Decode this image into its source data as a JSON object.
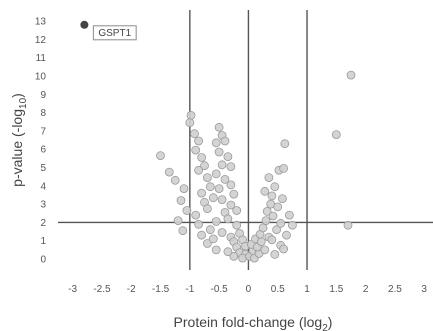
{
  "chart_data": {
    "type": "scatter",
    "xlabel": "Protein fold-change (log",
    "xlabel_sub": "2",
    "xlabel_close": ")",
    "ylabel": "p-value (-log",
    "ylabel_sub": "10",
    "ylabel_close": ")",
    "xlim": [
      -3.25,
      3.15
    ],
    "ylim": [
      -0.6,
      13.5
    ],
    "xticks": [
      -3,
      -2.5,
      -2,
      -1.5,
      -1,
      -0.5,
      0,
      0.5,
      1,
      1.5,
      2,
      2.5,
      3
    ],
    "xtick_labels": [
      "-3",
      "-2.5",
      "-2",
      "-1.5",
      "-1",
      "-0.5",
      "0",
      "0.5",
      "1",
      "1.5",
      "2",
      "2.5",
      "3"
    ],
    "yticks": [
      0,
      1,
      2,
      3,
      4,
      5,
      6,
      7,
      8,
      9,
      10,
      11,
      12,
      13
    ],
    "ytick_labels": [
      "0",
      "1",
      "2",
      "3",
      "4",
      "5",
      "6",
      "7",
      "8",
      "9",
      "10",
      "11",
      "12",
      "13"
    ],
    "threshold_lines": {
      "x": [
        -1,
        0,
        1
      ],
      "y": [
        2
      ]
    },
    "grid": false,
    "colors": {
      "point_fill": "#cfcfcf",
      "point_stroke": "#9a9a9a",
      "highlight_fill": "#444444",
      "line": "#555555"
    },
    "highlight": {
      "label": "GSPT1",
      "x": -2.8,
      "y": 12.8
    },
    "points": [
      {
        "x": 1.75,
        "y": 10.05
      },
      {
        "x": 1.5,
        "y": 6.8
      },
      {
        "x": 1.7,
        "y": 1.85
      },
      {
        "x": -1.5,
        "y": 5.65
      },
      {
        "x": -1.35,
        "y": 4.75
      },
      {
        "x": -1.25,
        "y": 4.3
      },
      {
        "x": -1.1,
        "y": 3.85
      },
      {
        "x": -1.15,
        "y": 3.2
      },
      {
        "x": -1.05,
        "y": 2.65
      },
      {
        "x": -1.2,
        "y": 2.1
      },
      {
        "x": -1.12,
        "y": 1.55
      },
      {
        "x": -0.98,
        "y": 7.85
      },
      {
        "x": -1.0,
        "y": 7.45
      },
      {
        "x": -0.92,
        "y": 6.85
      },
      {
        "x": -0.85,
        "y": 6.45
      },
      {
        "x": -0.9,
        "y": 5.95
      },
      {
        "x": -0.8,
        "y": 5.55
      },
      {
        "x": -0.75,
        "y": 5.1
      },
      {
        "x": -0.85,
        "y": 4.85
      },
      {
        "x": -0.7,
        "y": 4.45
      },
      {
        "x": -0.65,
        "y": 3.95
      },
      {
        "x": -0.8,
        "y": 3.6
      },
      {
        "x": -0.75,
        "y": 3.1
      },
      {
        "x": -0.6,
        "y": 3.35
      },
      {
        "x": -0.7,
        "y": 2.75
      },
      {
        "x": -0.9,
        "y": 2.4
      },
      {
        "x": -0.85,
        "y": 1.9
      },
      {
        "x": -0.55,
        "y": 2.05
      },
      {
        "x": -0.65,
        "y": 1.6
      },
      {
        "x": -0.5,
        "y": 7.2
      },
      {
        "x": -0.45,
        "y": 6.75
      },
      {
        "x": -0.55,
        "y": 6.35
      },
      {
        "x": -0.4,
        "y": 6.45
      },
      {
        "x": -0.5,
        "y": 5.85
      },
      {
        "x": -0.35,
        "y": 5.6
      },
      {
        "x": -0.45,
        "y": 5.15
      },
      {
        "x": -0.3,
        "y": 5.05
      },
      {
        "x": -0.55,
        "y": 4.65
      },
      {
        "x": -0.4,
        "y": 4.35
      },
      {
        "x": -0.3,
        "y": 4.05
      },
      {
        "x": -0.5,
        "y": 3.85
      },
      {
        "x": -0.25,
        "y": 3.55
      },
      {
        "x": -0.45,
        "y": 3.25
      },
      {
        "x": -0.3,
        "y": 2.95
      },
      {
        "x": -0.4,
        "y": 2.55
      },
      {
        "x": -0.2,
        "y": 2.65
      },
      {
        "x": -0.35,
        "y": 2.2
      },
      {
        "x": -0.2,
        "y": 1.85
      },
      {
        "x": -0.45,
        "y": 1.45
      },
      {
        "x": -0.3,
        "y": 1.2
      },
      {
        "x": -0.15,
        "y": 1.4
      },
      {
        "x": -0.25,
        "y": 0.95
      },
      {
        "x": -0.1,
        "y": 1.05
      },
      {
        "x": -0.2,
        "y": 0.65
      },
      {
        "x": -0.05,
        "y": 0.7
      },
      {
        "x": -0.15,
        "y": 0.35
      },
      {
        "x": -0.05,
        "y": 0.25
      },
      {
        "x": -0.1,
        "y": 0.05
      },
      {
        "x": -0.25,
        "y": 0.15
      },
      {
        "x": -0.7,
        "y": 0.85
      },
      {
        "x": -0.55,
        "y": 0.5
      },
      {
        "x": -0.35,
        "y": 0.4
      },
      {
        "x": -0.6,
        "y": 1.1
      },
      {
        "x": -0.8,
        "y": 1.3
      },
      {
        "x": 0.02,
        "y": 0.15
      },
      {
        "x": 0.08,
        "y": 0.45
      },
      {
        "x": 0.05,
        "y": 0.8
      },
      {
        "x": 0.12,
        "y": 1.1
      },
      {
        "x": 0.1,
        "y": 0.05
      },
      {
        "x": 0.18,
        "y": 0.3
      },
      {
        "x": 0.15,
        "y": 0.65
      },
      {
        "x": 0.22,
        "y": 0.95
      },
      {
        "x": 0.2,
        "y": 1.35
      },
      {
        "x": 0.25,
        "y": 1.7
      },
      {
        "x": 0.28,
        "y": 0.5
      },
      {
        "x": 0.3,
        "y": 2.1
      },
      {
        "x": 0.32,
        "y": 2.6
      },
      {
        "x": 0.35,
        "y": 1.2
      },
      {
        "x": 0.38,
        "y": 3.0
      },
      {
        "x": 0.4,
        "y": 3.45
      },
      {
        "x": 0.42,
        "y": 2.35
      },
      {
        "x": 0.45,
        "y": 3.95
      },
      {
        "x": 0.48,
        "y": 1.6
      },
      {
        "x": 0.5,
        "y": 2.85
      },
      {
        "x": 0.52,
        "y": 4.85
      },
      {
        "x": 0.55,
        "y": 1.95
      },
      {
        "x": 0.58,
        "y": 3.3
      },
      {
        "x": 0.6,
        "y": 4.95
      },
      {
        "x": 0.62,
        "y": 6.3
      },
      {
        "x": 0.65,
        "y": 1.3
      },
      {
        "x": 0.55,
        "y": 0.75
      },
      {
        "x": 0.7,
        "y": 2.4
      },
      {
        "x": 0.35,
        "y": 4.45
      },
      {
        "x": 0.28,
        "y": 3.7
      },
      {
        "x": 0.45,
        "y": 0.25
      },
      {
        "x": 0.6,
        "y": 0.55
      },
      {
        "x": 0.75,
        "y": 1.85
      },
      {
        "x": 0.4,
        "y": 1.05
      }
    ]
  }
}
